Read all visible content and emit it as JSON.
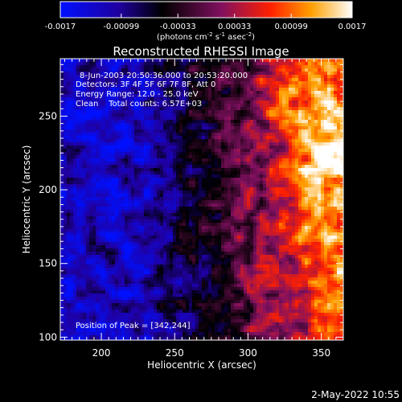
{
  "chart_data": {
    "type": "heatmap",
    "title": "Reconstructed RHESSI Image",
    "xlabel": "Heliocentric X (arcsec)",
    "ylabel": "Heliocentric Y (arcsec)",
    "x_ticks": [
      200,
      250,
      300,
      350
    ],
    "y_ticks": [
      100,
      150,
      200,
      250
    ],
    "xlim": [
      172,
      365
    ],
    "ylim": [
      98,
      289
    ],
    "colorbar": {
      "ticks": [
        "-0.0017",
        "-0.00099",
        "-0.00033",
        "0.00033",
        "0.00099",
        "0.0017"
      ],
      "label_main": "(photons cm",
      "label_exp1": "-2",
      "label_mid": " s",
      "label_exp2": "-1",
      "label_tail": " asec",
      "label_exp3": "-2",
      "label_end": ")",
      "vmin": -0.0017,
      "vmax": 0.0017,
      "colormap": [
        "#0010ff",
        "#2000a0",
        "#000000",
        "#801060",
        "#ff2000",
        "#ffa000",
        "#ffffff"
      ]
    },
    "annotations": {
      "time": "8-Jun-2003 20:50:36.000 to 20:53:20.000",
      "detectors": "Detectors: 3F 4F 5F 6F 7F 8F, Att 0",
      "energy": "Energy Range: 12.0 - 25.0 keV",
      "clean": "Clean    Total counts: 6.57E+03",
      "peak": "Position of Peak = [342,244]"
    },
    "peak": [
      342,
      244
    ],
    "grid": false,
    "legend": "none"
  },
  "footer": {
    "timestamp": "2-May-2022 10:55"
  }
}
